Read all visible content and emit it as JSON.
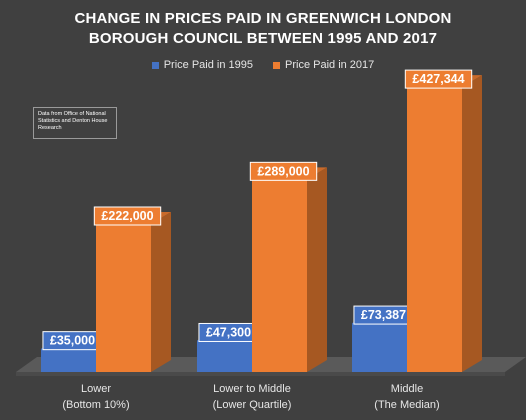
{
  "title_line1": "CHANGE IN PRICES PAID IN GREENWICH LONDON",
  "title_line2": "BOROUGH COUNCIL BETWEEN 1995 AND 2017",
  "note_text": "Data from Office of National Statistics and Denton House Research",
  "colors": {
    "series_1995": "#4472c4",
    "series_2017": "#ed7d31",
    "background": "#404040"
  },
  "chart_data": {
    "type": "bar",
    "title": "CHANGE IN PRICES PAID IN GREENWICH LONDON BOROUGH COUNCIL BETWEEN 1995 AND 2017",
    "legend_position": "top",
    "grid": false,
    "categories": [
      [
        "Lower",
        "(Bottom 10%)"
      ],
      [
        "Lower to Middle",
        "(Lower Quartile)"
      ],
      [
        "Middle",
        "(The Median)"
      ]
    ],
    "series": [
      {
        "name": "Price Paid in 1995",
        "values": [
          35000,
          47300,
          73387
        ],
        "labels": [
          "£35,000",
          "£47,300",
          "£73,387"
        ]
      },
      {
        "name": "Price Paid in 2017",
        "values": [
          222000,
          289000,
          427344
        ],
        "labels": [
          "£222,000",
          "£289,000",
          "£427,344"
        ]
      }
    ],
    "ylim": [
      0,
      450000
    ]
  }
}
